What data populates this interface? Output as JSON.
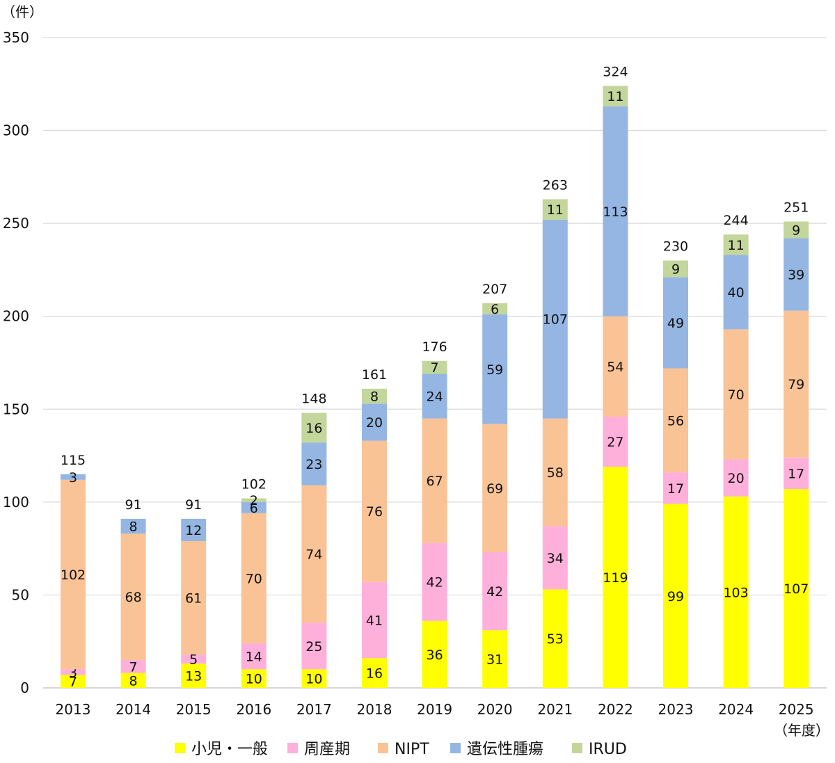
{
  "chart_data": {
    "type": "bar",
    "stacked": true,
    "y_unit_label": "（件）",
    "x_unit_label": "（年度）",
    "categories": [
      "2013",
      "2014",
      "2015",
      "2016",
      "2017",
      "2018",
      "2019",
      "2020",
      "2021",
      "2022",
      "2023",
      "2024",
      "2025"
    ],
    "ylim": [
      0,
      350
    ],
    "yticks": [
      0,
      50,
      100,
      150,
      200,
      250,
      300,
      350
    ],
    "grid": true,
    "legend_position": "bottom",
    "series": [
      {
        "name": "小児・一般",
        "color": "#FFFF00",
        "values": [
          7,
          8,
          13,
          10,
          10,
          16,
          36,
          31,
          53,
          119,
          99,
          103,
          107
        ]
      },
      {
        "name": "周産期",
        "color": "#FFB0DA",
        "values": [
          3,
          7,
          5,
          14,
          25,
          41,
          42,
          42,
          34,
          27,
          17,
          20,
          17
        ]
      },
      {
        "name": "NIPT",
        "color": "#F9C396",
        "values": [
          102,
          68,
          61,
          70,
          74,
          76,
          67,
          69,
          58,
          54,
          56,
          70,
          79
        ]
      },
      {
        "name": "遺伝性腫瘍",
        "color": "#95B6E2",
        "values": [
          3,
          8,
          12,
          6,
          23,
          20,
          24,
          59,
          107,
          113,
          49,
          40,
          39
        ]
      },
      {
        "name": "IRUD",
        "color": "#C3D69B",
        "values": [
          0,
          0,
          0,
          2,
          16,
          8,
          7,
          6,
          11,
          11,
          9,
          11,
          9
        ]
      }
    ],
    "totals": [
      115,
      91,
      91,
      102,
      148,
      161,
      176,
      207,
      263,
      324,
      230,
      244,
      251
    ]
  }
}
